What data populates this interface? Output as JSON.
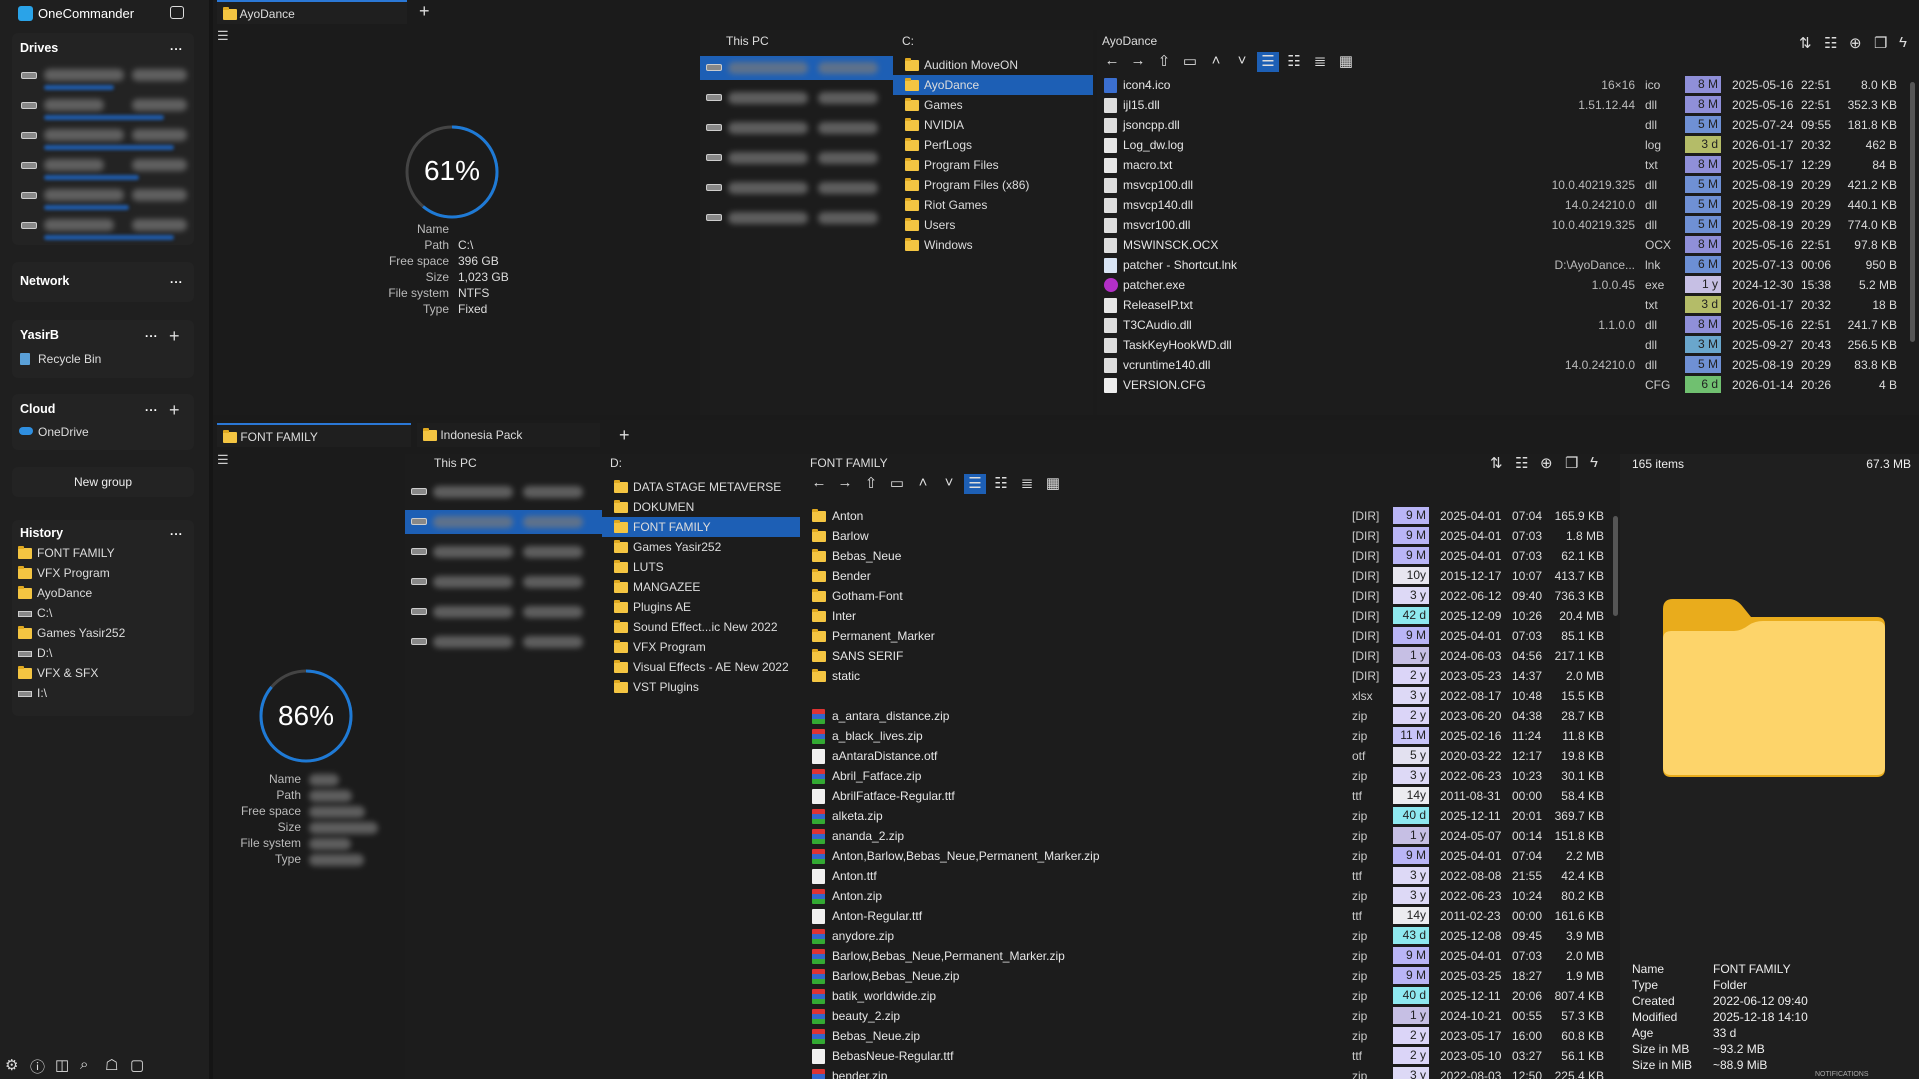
{
  "app": {
    "title": "OneCommander"
  },
  "sidebar": {
    "drives_header": "Drives",
    "network_header": "Network",
    "user_header": "YasirB",
    "user_items": [
      {
        "label": "Recycle Bin",
        "icon": "recycle-bin-icon"
      }
    ],
    "cloud_header": "Cloud",
    "cloud_items": [
      {
        "label": "OneDrive",
        "icon": "onedrive-icon"
      }
    ],
    "new_group": "New group",
    "more": "...",
    "history_header": "History",
    "history": [
      {
        "label": "FONT FAMILY",
        "icon": "folder"
      },
      {
        "label": "VFX Program",
        "icon": "folder"
      },
      {
        "label": "AyoDance",
        "icon": "folder"
      },
      {
        "label": "C:\\",
        "icon": "drive-windows"
      },
      {
        "label": "Games Yasir252",
        "icon": "folder"
      },
      {
        "label": "D:\\",
        "icon": "drive"
      },
      {
        "label": "VFX & SFX",
        "icon": "folder"
      },
      {
        "label": "I:\\",
        "icon": "drive"
      }
    ],
    "bottom_icons": [
      "settings-icon",
      "info-icon",
      "panel-layout-icon",
      "search-icon",
      "robot-icon",
      "new-window-icon"
    ]
  },
  "age_colors": {
    "8 M": "#8f8fd8",
    "5 M": "#6f90d4",
    "3 d": "#b4bc68",
    "6 M": "#6c8fd4",
    "1 y": "#c6bfe4",
    "3 M": "#6aa6cc",
    "6 d": "#70c070",
    "9 M": "#b9b5f6",
    "10y": "#e8e6ef",
    "3 y": "#ddd9f6",
    "42 d": "#8ee8ee",
    "2 y": "#dbd5f8",
    "11 M": "#c8c4f8",
    "5 y": "#e3e1f0",
    "14y": "#ececf0",
    "40 d": "#8ee8f0",
    "43 d": "#8ee8ee"
  },
  "upper": {
    "tabs": [
      {
        "label": "AyoDance",
        "active": true
      }
    ],
    "drive_info": {
      "percent": 61,
      "labels": [
        "Name",
        "Path",
        "Free space",
        "Size",
        "File system",
        "Type"
      ],
      "values": [
        "",
        "C:\\",
        "396 GB",
        "1,023 GB",
        "NTFS",
        "Fixed"
      ]
    },
    "thispc_header": "This PC",
    "thispc_selected": 0,
    "folder_header": "C:",
    "folders": [
      "Audition MoveON",
      "AyoDance",
      "Games",
      "NVIDIA",
      "PerfLogs",
      "Program Files",
      "Program Files (x86)",
      "Riot Games",
      "Users",
      "Windows"
    ],
    "folder_selected": 1,
    "list_header": "AyoDance",
    "files": [
      {
        "name": "icon4.ico",
        "ver": "16×16",
        "ext": "ico",
        "age": "8 M",
        "date": "2025-05-16",
        "time": "22:51",
        "size": "8.0 KB",
        "icon": "ico"
      },
      {
        "name": "ijl15.dll",
        "ver": "1.51.12.44",
        "ext": "dll",
        "age": "8 M",
        "date": "2025-05-16",
        "time": "22:51",
        "size": "352.3 KB",
        "icon": "dll"
      },
      {
        "name": "jsoncpp.dll",
        "ver": "",
        "ext": "dll",
        "age": "5 M",
        "date": "2025-07-24",
        "time": "09:55",
        "size": "181.8 KB",
        "icon": "dll"
      },
      {
        "name": "Log_dw.log",
        "ver": "",
        "ext": "log",
        "age": "3 d",
        "date": "2026-01-17",
        "time": "20:32",
        "size": "462 B",
        "icon": "txt"
      },
      {
        "name": "macro.txt",
        "ver": "",
        "ext": "txt",
        "age": "8 M",
        "date": "2025-05-17",
        "time": "12:29",
        "size": "84 B",
        "icon": "txt"
      },
      {
        "name": "msvcp100.dll",
        "ver": "10.0.40219.325",
        "ext": "dll",
        "age": "5 M",
        "date": "2025-08-19",
        "time": "20:29",
        "size": "421.2 KB",
        "icon": "dll"
      },
      {
        "name": "msvcp140.dll",
        "ver": "14.0.24210.0",
        "ext": "dll",
        "age": "5 M",
        "date": "2025-08-19",
        "time": "20:29",
        "size": "440.1 KB",
        "icon": "dll"
      },
      {
        "name": "msvcr100.dll",
        "ver": "10.0.40219.325",
        "ext": "dll",
        "age": "5 M",
        "date": "2025-08-19",
        "time": "20:29",
        "size": "774.0 KB",
        "icon": "dll"
      },
      {
        "name": "MSWINSCK.OCX",
        "ver": "",
        "ext": "OCX",
        "age": "8 M",
        "date": "2025-05-16",
        "time": "22:51",
        "size": "97.8 KB",
        "icon": "dll"
      },
      {
        "name": "patcher - Shortcut.lnk",
        "ver": "D:\\AyoDance...",
        "ext": "lnk",
        "age": "6 M",
        "date": "2025-07-13",
        "time": "00:06",
        "size": "950 B",
        "icon": "lnk"
      },
      {
        "name": "patcher.exe",
        "ver": "1.0.0.45",
        "ext": "exe",
        "age": "1 y",
        "date": "2024-12-30",
        "time": "15:38",
        "size": "5.2 MB",
        "icon": "exe"
      },
      {
        "name": "ReleaseIP.txt",
        "ver": "",
        "ext": "txt",
        "age": "3 d",
        "date": "2026-01-17",
        "time": "20:32",
        "size": "18 B",
        "icon": "txt"
      },
      {
        "name": "T3CAudio.dll",
        "ver": "1.1.0.0",
        "ext": "dll",
        "age": "8 M",
        "date": "2025-05-16",
        "time": "22:51",
        "size": "241.7 KB",
        "icon": "dll"
      },
      {
        "name": "TaskKeyHookWD.dll",
        "ver": "",
        "ext": "dll",
        "age": "3 M",
        "date": "2025-09-27",
        "time": "20:43",
        "size": "256.5 KB",
        "icon": "dll"
      },
      {
        "name": "vcruntime140.dll",
        "ver": "14.0.24210.0",
        "ext": "dll",
        "age": "5 M",
        "date": "2025-08-19",
        "time": "20:29",
        "size": "83.8 KB",
        "icon": "dll"
      },
      {
        "name": "VERSION.CFG",
        "ver": "",
        "ext": "CFG",
        "age": "6 d",
        "date": "2026-01-14",
        "time": "20:26",
        "size": "4 B",
        "icon": "blank"
      }
    ]
  },
  "lower": {
    "tabs": [
      {
        "label": "FONT FAMILY",
        "active": true
      },
      {
        "label": "Indonesia Pack",
        "active": false
      }
    ],
    "drive_info": {
      "percent": 86,
      "labels": [
        "Name",
        "Path",
        "Free space",
        "Size",
        "File system",
        "Type"
      ]
    },
    "thispc_header": "This PC",
    "thispc_selected": 1,
    "folder_header": "D:",
    "folders": [
      "DATA STAGE METAVERSE",
      "DOKUMEN",
      "FONT FAMILY",
      "Games Yasir252",
      "LUTS",
      "MANGAZEE",
      "Plugins AE",
      "Sound Effect...ic New 2022",
      "VFX Program",
      "Visual Effects - AE New 2022",
      "VST Plugins"
    ],
    "folder_selected": 2,
    "list_header": "FONT FAMILY",
    "item_count": "165 items",
    "total_size": "67.3 MB",
    "files": [
      {
        "name": "Anton",
        "ext": "[DIR]",
        "age": "9 M",
        "date": "2025-04-01",
        "time": "07:04",
        "size": "165.9 KB",
        "icon": "folder"
      },
      {
        "name": "Barlow",
        "ext": "[DIR]",
        "age": "9 M",
        "date": "2025-04-01",
        "time": "07:03",
        "size": "1.8 MB",
        "icon": "folder"
      },
      {
        "name": "Bebas_Neue",
        "ext": "[DIR]",
        "age": "9 M",
        "date": "2025-04-01",
        "time": "07:03",
        "size": "62.1 KB",
        "icon": "folder"
      },
      {
        "name": "Bender",
        "ext": "[DIR]",
        "age": "10y",
        "date": "2015-12-17",
        "time": "10:07",
        "size": "413.7 KB",
        "icon": "folder"
      },
      {
        "name": "Gotham-Font",
        "ext": "[DIR]",
        "age": "3 y",
        "date": "2022-06-12",
        "time": "09:40",
        "size": "736.3 KB",
        "icon": "folder"
      },
      {
        "name": "Inter",
        "ext": "[DIR]",
        "age": "42 d",
        "date": "2025-12-09",
        "time": "10:26",
        "size": "20.4 MB",
        "icon": "folder"
      },
      {
        "name": "Permanent_Marker",
        "ext": "[DIR]",
        "age": "9 M",
        "date": "2025-04-01",
        "time": "07:03",
        "size": "85.1 KB",
        "icon": "folder"
      },
      {
        "name": "SANS SERIF",
        "ext": "[DIR]",
        "age": "1 y",
        "date": "2024-06-03",
        "time": "04:56",
        "size": "217.1 KB",
        "icon": "folder"
      },
      {
        "name": "static",
        "ext": "[DIR]",
        "age": "2 y",
        "date": "2023-05-23",
        "time": "14:37",
        "size": "2.0 MB",
        "icon": "folder"
      },
      {
        "name": "",
        "ext": "xlsx",
        "age": "3 y",
        "date": "2022-08-17",
        "time": "10:48",
        "size": "15.5 KB",
        "icon": "none"
      },
      {
        "name": "a_antara_distance.zip",
        "ext": "zip",
        "age": "2 y",
        "date": "2023-06-20",
        "time": "04:38",
        "size": "28.7 KB",
        "icon": "zip"
      },
      {
        "name": "a_black_lives.zip",
        "ext": "zip",
        "age": "11 M",
        "date": "2025-02-16",
        "time": "11:24",
        "size": "11.8 KB",
        "icon": "zip"
      },
      {
        "name": "aAntaraDistance.otf",
        "ext": "otf",
        "age": "5 y",
        "date": "2020-03-22",
        "time": "12:17",
        "size": "19.8 KB",
        "icon": "font"
      },
      {
        "name": "Abril_Fatface.zip",
        "ext": "zip",
        "age": "3 y",
        "date": "2022-06-23",
        "time": "10:23",
        "size": "30.1 KB",
        "icon": "zip"
      },
      {
        "name": "AbrilFatface-Regular.ttf",
        "ext": "ttf",
        "age": "14y",
        "date": "2011-08-31",
        "time": "00:00",
        "size": "58.4 KB",
        "icon": "font"
      },
      {
        "name": "alketa.zip",
        "ext": "zip",
        "age": "40 d",
        "date": "2025-12-11",
        "time": "20:01",
        "size": "369.7 KB",
        "icon": "zip"
      },
      {
        "name": "ananda_2.zip",
        "ext": "zip",
        "age": "1 y",
        "date": "2024-05-07",
        "time": "00:14",
        "size": "151.8 KB",
        "icon": "zip"
      },
      {
        "name": "Anton,Barlow,Bebas_Neue,Permanent_Marker.zip",
        "ext": "zip",
        "age": "9 M",
        "date": "2025-04-01",
        "time": "07:04",
        "size": "2.2 MB",
        "icon": "zip"
      },
      {
        "name": "Anton.ttf",
        "ext": "ttf",
        "age": "3 y",
        "date": "2022-08-08",
        "time": "21:55",
        "size": "42.4 KB",
        "icon": "font"
      },
      {
        "name": "Anton.zip",
        "ext": "zip",
        "age": "3 y",
        "date": "2022-06-23",
        "time": "10:24",
        "size": "80.2 KB",
        "icon": "zip"
      },
      {
        "name": "Anton-Regular.ttf",
        "ext": "ttf",
        "age": "14y",
        "date": "2011-02-23",
        "time": "00:00",
        "size": "161.6 KB",
        "icon": "font"
      },
      {
        "name": "anydore.zip",
        "ext": "zip",
        "age": "43 d",
        "date": "2025-12-08",
        "time": "09:45",
        "size": "3.9 MB",
        "icon": "zip"
      },
      {
        "name": "Barlow,Bebas_Neue,Permanent_Marker.zip",
        "ext": "zip",
        "age": "9 M",
        "date": "2025-04-01",
        "time": "07:03",
        "size": "2.0 MB",
        "icon": "zip"
      },
      {
        "name": "Barlow,Bebas_Neue.zip",
        "ext": "zip",
        "age": "9 M",
        "date": "2025-03-25",
        "time": "18:27",
        "size": "1.9 MB",
        "icon": "zip"
      },
      {
        "name": "batik_worldwide.zip",
        "ext": "zip",
        "age": "40 d",
        "date": "2025-12-11",
        "time": "20:06",
        "size": "807.4 KB",
        "icon": "zip"
      },
      {
        "name": "beauty_2.zip",
        "ext": "zip",
        "age": "1 y",
        "date": "2024-10-21",
        "time": "00:55",
        "size": "57.3 KB",
        "icon": "zip"
      },
      {
        "name": "Bebas_Neue.zip",
        "ext": "zip",
        "age": "2 y",
        "date": "2023-05-17",
        "time": "16:00",
        "size": "60.8 KB",
        "icon": "zip"
      },
      {
        "name": "BebasNeue-Regular.ttf",
        "ext": "ttf",
        "age": "2 y",
        "date": "2023-05-10",
        "time": "03:27",
        "size": "56.1 KB",
        "icon": "font"
      },
      {
        "name": "bender.zip",
        "ext": "zip",
        "age": "3 y",
        "date": "2022-08-03",
        "time": "12:50",
        "size": "225.4 KB",
        "icon": "zip"
      }
    ]
  },
  "details": {
    "rows": [
      {
        "label": "Name",
        "value": "FONT FAMILY"
      },
      {
        "label": "Type",
        "value": "Folder"
      },
      {
        "label": "Created",
        "value": "2022-06-12  09:40"
      },
      {
        "label": "Modified",
        "value": "2025-12-18  14:10"
      },
      {
        "label": "Age",
        "value": "33 d"
      },
      {
        "label": "Size in MB",
        "value": "~93.2 MB"
      },
      {
        "label": "Size in MiB",
        "value": "~88.9 MiB"
      }
    ],
    "notifications": "NOTIFICATIONS"
  }
}
